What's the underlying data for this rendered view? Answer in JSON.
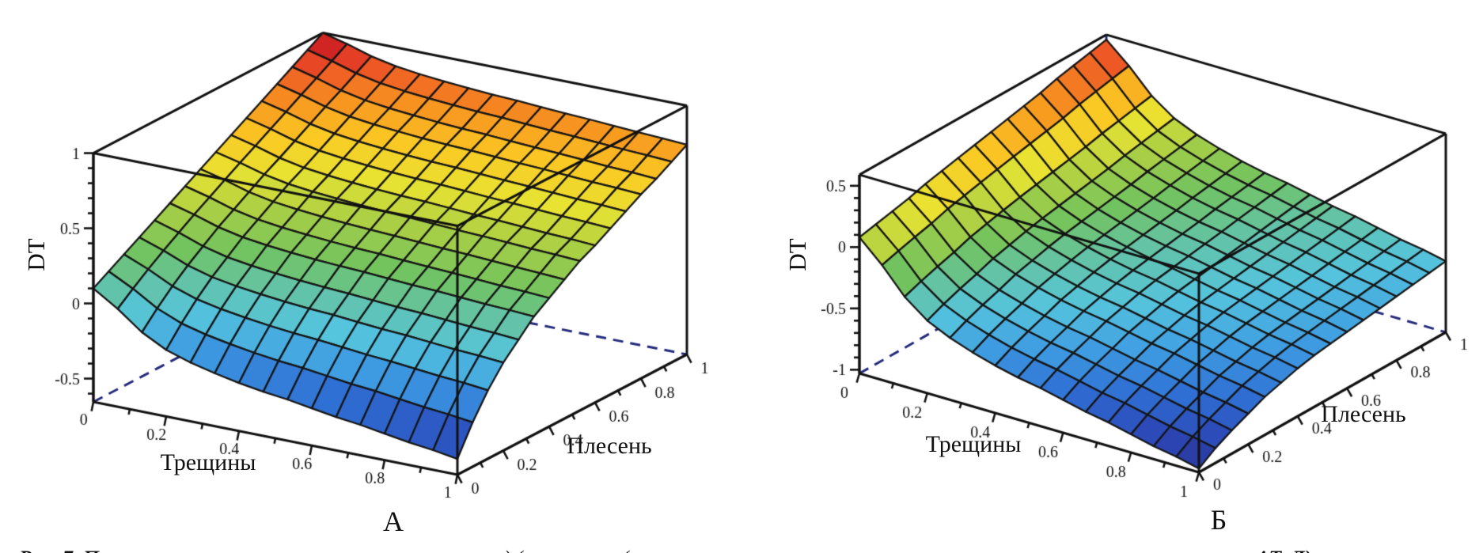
{
  "figure": {
    "caption_fragments": [
      {
        "text": "Рис. 7. П"
      },
      {
        "text": ") ("
      },
      {
        "text": "("
      },
      {
        "text": "ΔТ, Д)"
      }
    ]
  },
  "colormap_stops": [
    [
      0.0,
      "#2a2f8f"
    ],
    [
      0.1,
      "#2c49b8"
    ],
    [
      0.19,
      "#2f6fd4"
    ],
    [
      0.28,
      "#3f9de2"
    ],
    [
      0.37,
      "#55c4dd"
    ],
    [
      0.45,
      "#63c3a8"
    ],
    [
      0.53,
      "#72c35f"
    ],
    [
      0.62,
      "#a9cf45"
    ],
    [
      0.7,
      "#e8e332"
    ],
    [
      0.78,
      "#fbc723"
    ],
    [
      0.85,
      "#f79420"
    ],
    [
      0.91,
      "#ef5f25"
    ],
    [
      0.96,
      "#e02b26"
    ],
    [
      1.0,
      "#9c1016"
    ]
  ],
  "chart_data": [
    {
      "id": "A",
      "panel_letter": "А",
      "type": "heatmap",
      "render_as": "3d-surface-mesh",
      "xlabel": "Трещины",
      "ylabel": "Плесень",
      "zlabel": "DT",
      "x_range": [
        0,
        1
      ],
      "y_range": [
        0,
        1
      ],
      "z_box": [
        -0.655,
        1.0
      ],
      "xy_tick_labels": [
        "0",
        "0.2",
        "0.4",
        "0.6",
        "0.8",
        "1"
      ],
      "xy_tick_values": [
        0,
        0.2,
        0.4,
        0.6,
        0.8,
        1
      ],
      "z_tick_labels": [
        "1",
        "0.5",
        "0",
        "-0.5"
      ],
      "z_tick_values": [
        1,
        0.5,
        0,
        -0.5
      ],
      "grid_points": 16,
      "z_edge_cracks0": [
        0.1,
        0.16,
        0.22,
        0.28,
        0.34,
        0.4,
        0.46,
        0.52,
        0.58,
        0.64,
        0.7,
        0.76,
        0.82,
        0.88,
        0.94,
        1.0
      ],
      "z_edge_cracks1": [
        -0.55,
        -0.36,
        -0.2,
        -0.07,
        0.03,
        0.13,
        0.2,
        0.27,
        0.34,
        0.39,
        0.45,
        0.51,
        0.57,
        0.62,
        0.68,
        0.74
      ],
      "ridge_blend_weights": [
        1.0,
        0.84,
        0.65,
        0.52,
        0.44,
        0.38,
        0.33,
        0.29,
        0.26,
        0.22,
        0.18,
        0.15,
        0.11,
        0.07,
        0.04,
        0.0
      ],
      "corner_values": {
        "cracks0_mold0": 0.1,
        "cracks1_mold0": -0.55,
        "cracks0_mold1": 1.0,
        "cracks1_mold1": 0.74
      }
    },
    {
      "id": "B",
      "panel_letter": "Б",
      "type": "heatmap",
      "render_as": "3d-surface-mesh",
      "xlabel": "Трещины",
      "ylabel": "Плесень",
      "zlabel": "DT",
      "x_range": [
        0,
        1
      ],
      "y_range": [
        0,
        1
      ],
      "z_box": [
        -1.03,
        0.59
      ],
      "xy_tick_labels": [
        "0",
        "0.2",
        "0.4",
        "0.6",
        "0.8",
        "1"
      ],
      "xy_tick_values": [
        0,
        0.2,
        0.4,
        0.6,
        0.8,
        1
      ],
      "z_tick_labels": [
        "0.5",
        "0",
        "-0.5",
        "-1"
      ],
      "z_tick_values": [
        0.5,
        0,
        -0.5,
        -1
      ],
      "grid_points": 16,
      "z_edge_cracks0": [
        0.08,
        0.11,
        0.14,
        0.17,
        0.21,
        0.24,
        0.27,
        0.3,
        0.33,
        0.36,
        0.39,
        0.42,
        0.46,
        0.49,
        0.52,
        0.55
      ],
      "z_edge_cracks1": [
        -1.0,
        -0.91,
        -0.84,
        -0.78,
        -0.72,
        -0.68,
        -0.64,
        -0.61,
        -0.59,
        -0.57,
        -0.55,
        -0.53,
        -0.51,
        -0.49,
        -0.47,
        -0.45
      ],
      "ridge_blend_weights": [
        1.0,
        0.84,
        0.65,
        0.52,
        0.44,
        0.38,
        0.33,
        0.29,
        0.26,
        0.22,
        0.18,
        0.15,
        0.11,
        0.07,
        0.04,
        0.0
      ],
      "corner_values": {
        "cracks0_mold0": 0.08,
        "cracks1_mold0": -1.0,
        "cracks0_mold1": 0.55,
        "cracks1_mold1": -0.45
      }
    }
  ]
}
